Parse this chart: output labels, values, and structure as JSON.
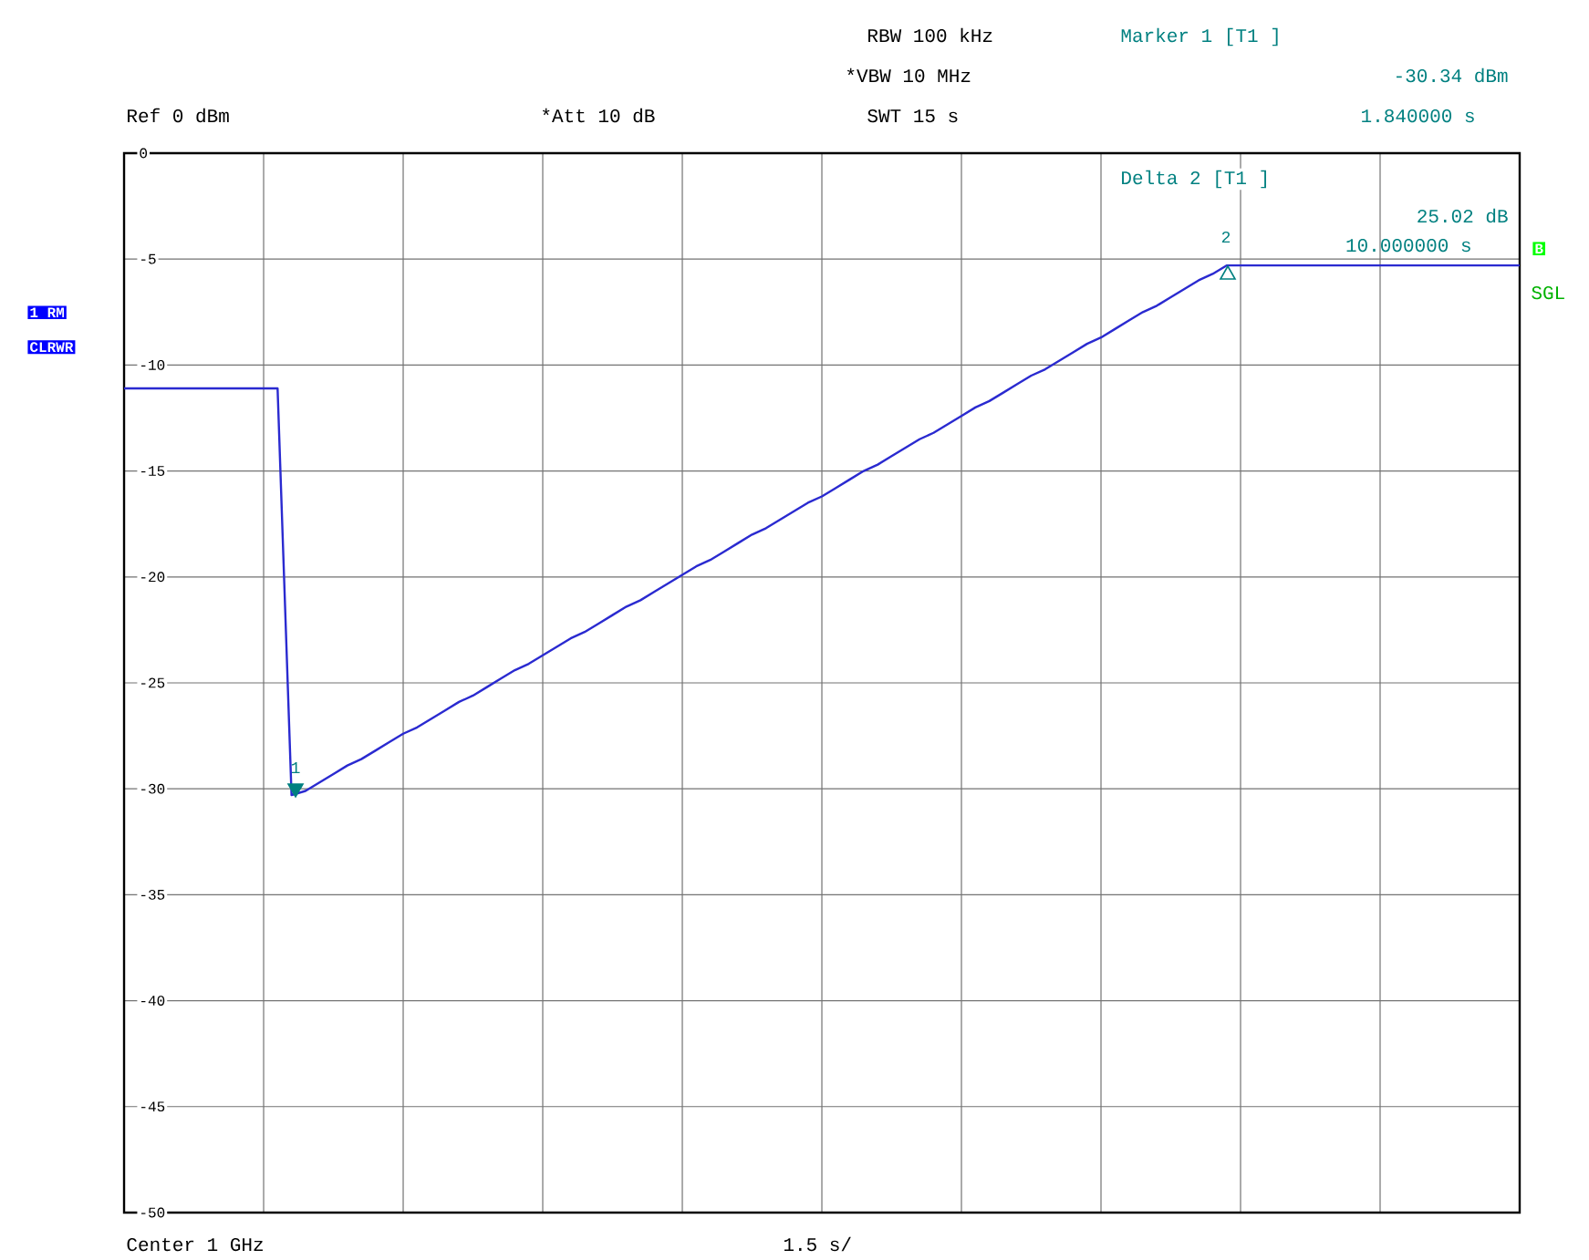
{
  "chart_data": {
    "type": "line",
    "categories": [
      null,
      null,
      null,
      null,
      null,
      null,
      null,
      null,
      null,
      null,
      null,
      null,
      null,
      null,
      null,
      null,
      null,
      null,
      null,
      null,
      null,
      null,
      null,
      null,
      null,
      null,
      null,
      null,
      null,
      null,
      null,
      null,
      null,
      null,
      null,
      null,
      null,
      null,
      null,
      null,
      null,
      null,
      null,
      null,
      null,
      null,
      null,
      null,
      null,
      null,
      null,
      null,
      null,
      null,
      null,
      null,
      null,
      null,
      null,
      null,
      null,
      null,
      null,
      null,
      null,
      null,
      null,
      null,
      null,
      null,
      null,
      null,
      null,
      null,
      null,
      null,
      null,
      null,
      null,
      null,
      null,
      null,
      null,
      null,
      null,
      null,
      null,
      null,
      null,
      null,
      null,
      null,
      null,
      null,
      null,
      null,
      null,
      null,
      null,
      null,
      null
    ],
    "ylim": [
      -50,
      0
    ],
    "yticks": [
      0,
      -5,
      -10,
      -15,
      -20,
      -25,
      -30,
      -35,
      -40,
      -45,
      -50
    ],
    "tick_labels": "y",
    "grid": true,
    "marker": "none",
    "line_style": "solid",
    "series": [
      {
        "color": "#2a2ad0",
        "values": [
          -11.1,
          -11.1,
          -11.1,
          -11.1,
          -11.1,
          -11.1,
          -11.1,
          -11.1,
          -11.1,
          -11.1,
          -11.1,
          -11.1,
          -30.3,
          -30.1,
          -29.7,
          -29.3,
          -28.9,
          -28.6,
          -28.2,
          -27.8,
          -27.4,
          -27.1,
          -26.7,
          -26.3,
          -25.9,
          -25.6,
          -25.2,
          -24.8,
          -24.4,
          -24.1,
          -23.7,
          -23.3,
          -22.9,
          -22.6,
          -22.2,
          -21.8,
          -21.4,
          -21.1,
          -20.7,
          -20.3,
          -19.9,
          -19.5,
          -19.2,
          -18.8,
          -18.4,
          -18.0,
          -17.7,
          -17.3,
          -16.9,
          -16.5,
          -16.2,
          -15.8,
          -15.4,
          -15.0,
          -14.7,
          -14.3,
          -13.9,
          -13.5,
          -13.2,
          -12.8,
          -12.4,
          -12.0,
          -11.7,
          -11.3,
          -10.9,
          -10.5,
          -10.2,
          -9.8,
          -9.4,
          -9.0,
          -8.7,
          -8.3,
          -7.9,
          -7.5,
          -7.2,
          -6.8,
          -6.4,
          -6.0,
          -5.7,
          -5.3,
          -5.3,
          -5.3,
          -5.3,
          -5.3,
          -5.3,
          -5.3,
          -5.3,
          -5.3,
          -5.3,
          -5.3,
          -5.3,
          -5.3,
          -5.3,
          -5.3,
          -5.3,
          -5.3,
          -5.3,
          -5.3,
          -5.3,
          -5.3,
          -5.3
        ]
      }
    ],
    "annotations": [
      "Ref 0 dBm",
      "*Att 10 dB",
      "RBW 100 kHz",
      "*VBW 10 MHz",
      "SWT 15 s",
      "Marker 1 [T1 ]",
      "-30.34 dBm",
      "1.840000 s",
      "Delta 2 [T1 ]",
      "25.02 dB",
      "10.000000 s",
      "1 RM",
      "CLRWR",
      "B",
      "SGL",
      "Center 1 GHz",
      "1.5 s/",
      "1",
      "2"
    ]
  }
}
